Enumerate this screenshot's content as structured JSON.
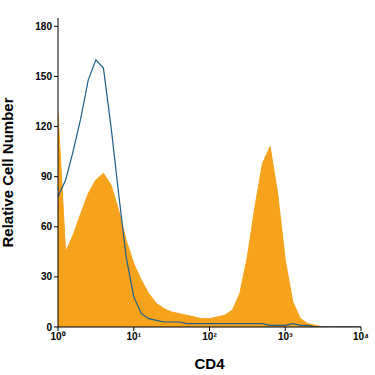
{
  "chart_data": {
    "type": "area",
    "x_label": "CD4",
    "y_label": "Relative Cell Number",
    "log": "x",
    "grid": false,
    "xlim": [
      1,
      10000
    ],
    "xticks": [
      {
        "value": 1,
        "label": "10⁰"
      },
      {
        "value": 10,
        "label": "10¹"
      },
      {
        "value": 100,
        "label": "10²"
      },
      {
        "value": 1000,
        "label": "10³"
      },
      {
        "value": 10000,
        "label": "10⁴"
      }
    ],
    "ylim": [
      0,
      185
    ],
    "yticks": [
      0,
      30,
      60,
      90,
      120,
      150,
      180
    ],
    "x": [
      1,
      1.26,
      1.58,
      2,
      2.51,
      3.16,
      3.98,
      5.01,
      6.31,
      7.94,
      10,
      12.6,
      15.8,
      20,
      25.1,
      31.6,
      39.8,
      50.1,
      63.1,
      79.4,
      100,
      126,
      158,
      200,
      251,
      316,
      398,
      501,
      631,
      794,
      1000,
      1259,
      1585,
      1995,
      2512,
      3162,
      3981,
      5012,
      6310,
      7943,
      10000
    ],
    "series": [
      {
        "type": "area",
        "color": "#f7a21b",
        "values": [
          128,
          45,
          55,
          68,
          80,
          88,
          92,
          85,
          70,
          52,
          38,
          28,
          20,
          14,
          11,
          9,
          8,
          7,
          6,
          5,
          5,
          6,
          7,
          10,
          20,
          42,
          72,
          98,
          108,
          80,
          40,
          15,
          5,
          2,
          1,
          0,
          0,
          0,
          0,
          0,
          0
        ]
      },
      {
        "type": "line",
        "color": "#1f5f8b",
        "values": [
          78,
          88,
          105,
          125,
          148,
          160,
          155,
          120,
          80,
          42,
          18,
          8,
          5,
          4,
          3,
          3,
          3,
          2,
          2,
          2,
          2,
          2,
          2,
          2,
          2,
          2,
          2,
          2,
          1,
          1,
          1,
          2,
          1,
          1,
          0,
          0,
          0,
          0,
          0,
          0,
          0
        ]
      }
    ]
  }
}
